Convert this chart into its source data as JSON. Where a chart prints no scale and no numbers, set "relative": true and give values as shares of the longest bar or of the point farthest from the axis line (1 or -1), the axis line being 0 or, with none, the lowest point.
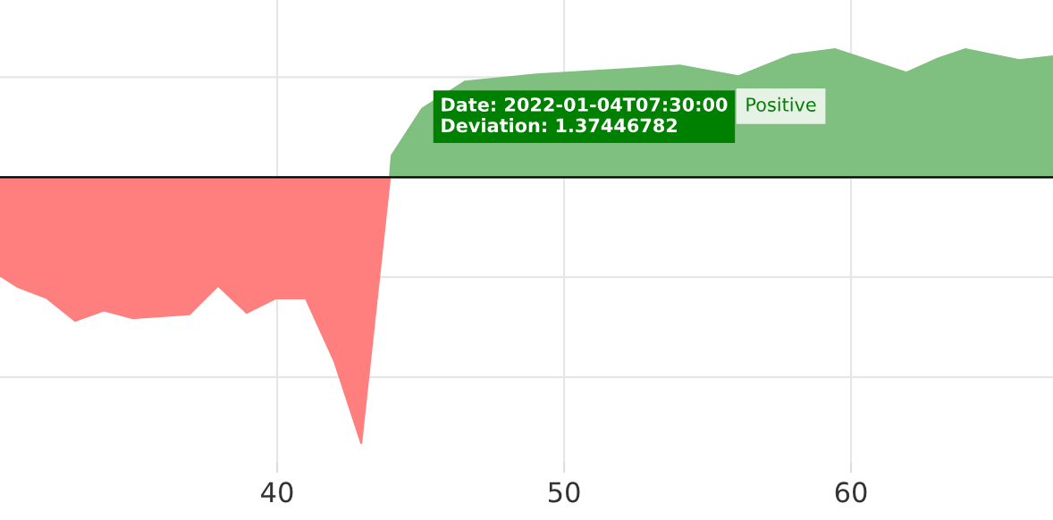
{
  "chart_data": {
    "type": "area",
    "relative": true,
    "xlim": [
      30.34,
      67.04
    ],
    "xticks": [
      40,
      50,
      60
    ],
    "tick_labels": "x",
    "grid": true,
    "legend": false,
    "series": [
      {
        "color": "#ff7f7f",
        "x": [
          30.34,
          30.97,
          31.96,
          32.96,
          33.96,
          34.95,
          36.95,
          37.94,
          38.94,
          39.94,
          41.0,
          41.99,
          42.93,
          43.93
        ],
        "values": [
          -0.37,
          -0.413,
          -0.454,
          -0.54,
          -0.501,
          -0.53,
          -0.515,
          -0.408,
          -0.51,
          -0.456,
          -0.456,
          -0.691,
          -1,
          0
        ]
      },
      {
        "name": "Positive",
        "color": "#7fbf7f",
        "x": [
          43.93,
          43.99,
          45.05,
          46.54,
          49.03,
          52.15,
          54.02,
          56.07,
          57.94,
          59.44,
          61.93,
          63.05,
          63.99,
          65.86,
          67.04
        ],
        "values": [
          0,
          0.081,
          0.257,
          0.359,
          0.386,
          0.406,
          0.42,
          0.379,
          0.46,
          0.481,
          0.393,
          0.447,
          0.481,
          0.44,
          0.454
        ]
      }
    ],
    "annotations": [
      "Date: 2022-01-04T07:30:00\nDeviation: 1.37446782"
    ]
  }
}
